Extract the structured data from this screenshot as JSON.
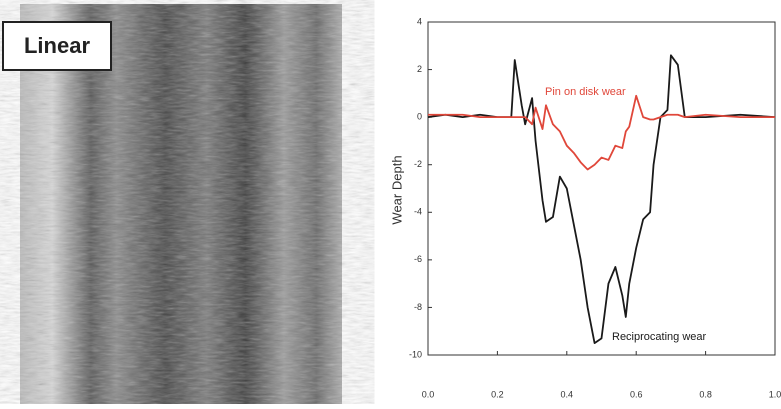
{
  "image_label": "Linear",
  "chart_data": {
    "type": "line",
    "ylabel": "Wear Depth",
    "x": [
      0,
      0.05,
      0.1,
      0.15,
      0.2,
      0.24,
      0.25,
      0.27,
      0.28,
      0.3,
      0.31,
      0.33,
      0.34,
      0.36,
      0.38,
      0.4,
      0.42,
      0.44,
      0.46,
      0.48,
      0.5,
      0.52,
      0.54,
      0.56,
      0.57,
      0.58,
      0.6,
      0.62,
      0.64,
      0.65,
      0.67,
      0.69,
      0.7,
      0.72,
      0.74,
      0.8,
      0.9,
      1
    ],
    "series": [
      {
        "name": "Reciprocating wear",
        "color": "#1a1a1a",
        "values": [
          0,
          0.1,
          0,
          0.1,
          0,
          0,
          2.4,
          0.5,
          -0.3,
          0.8,
          -1,
          -3.5,
          -4.4,
          -4.2,
          -2.5,
          -3,
          -4.5,
          -6,
          -8,
          -9.5,
          -9.3,
          -7,
          -6.3,
          -7.5,
          -8.4,
          -7,
          -5.5,
          -4.3,
          -4,
          -2,
          0,
          0.3,
          2.6,
          2.2,
          0,
          0,
          0.1,
          0
        ]
      },
      {
        "name": "Pin on disk wear",
        "color": "#e0473a",
        "values": [
          0.1,
          0.1,
          0.1,
          0,
          0,
          0,
          0,
          0,
          0,
          -0.3,
          0.4,
          -0.5,
          0.5,
          -0.3,
          -0.6,
          -1.2,
          -1.5,
          -1.9,
          -2.2,
          -2,
          -1.7,
          -1.8,
          -1.2,
          -1.3,
          -0.6,
          -0.4,
          0.9,
          0,
          -0.1,
          -0.1,
          0,
          0.1,
          0.1,
          0.1,
          0,
          0.1,
          0,
          0
        ]
      }
    ],
    "xlim": [
      0,
      1
    ],
    "xticks": [
      {
        "value": 0,
        "label": "0.0"
      },
      {
        "value": 0.2,
        "label": "0.2"
      },
      {
        "value": 0.4,
        "label": "0.4"
      },
      {
        "value": 0.6,
        "label": "0.6"
      },
      {
        "value": 0.8,
        "label": "0.8"
      },
      {
        "value": 1,
        "label": "1.0"
      }
    ],
    "ylim": [
      -10,
      4
    ],
    "yticks": [
      -10,
      -8,
      -6,
      -4,
      -2,
      0,
      2,
      4
    ],
    "grid": false
  }
}
